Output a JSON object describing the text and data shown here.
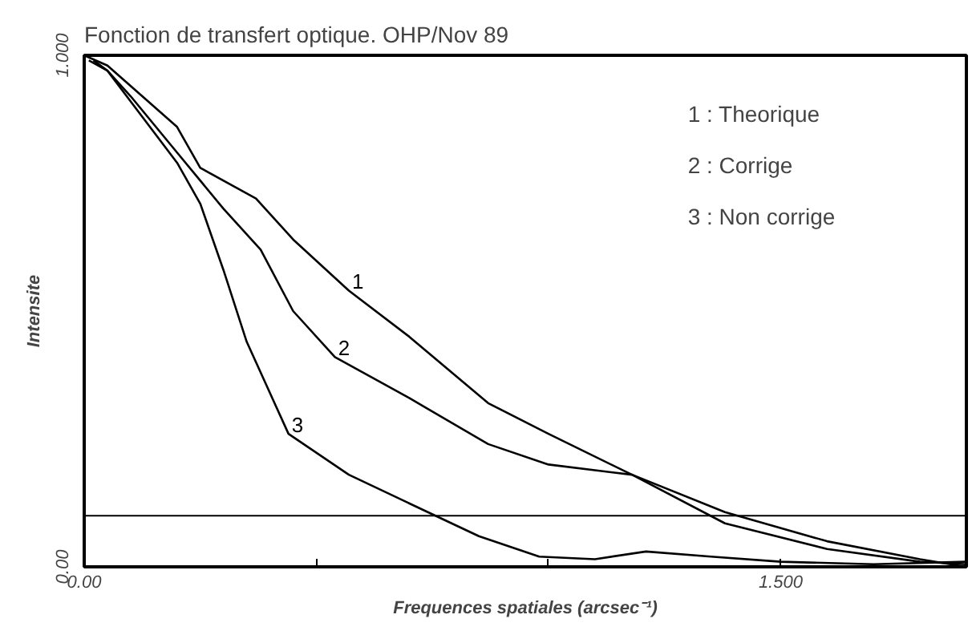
{
  "chart_data": {
    "type": "line",
    "title": "Fonction de transfert optique. OHP/Nov 89",
    "xlabel": "Frequences spatiales (arcsec⁻¹)",
    "ylabel": "Intensite",
    "xlim": [
      0,
      1.9
    ],
    "ylim": [
      0,
      1
    ],
    "xticks": [
      {
        "value": 0,
        "label": "0.00"
      },
      {
        "value": 0.5,
        "label": null
      },
      {
        "value": 1.0,
        "label": null
      },
      {
        "value": 1.5,
        "label": "1.500"
      }
    ],
    "yticks": [
      {
        "value": 0,
        "label": "0.00"
      },
      {
        "value": 1,
        "label": "1.000"
      }
    ],
    "grid": false,
    "marker": "none",
    "line_style": "solid",
    "series": [
      {
        "name": "1",
        "color": "#000000",
        "x": [
          0,
          0.05,
          0.1,
          0.2,
          0.25,
          0.37,
          0.45,
          0.57,
          0.7,
          0.87,
          1.0,
          1.18,
          1.38,
          1.6,
          1.8,
          1.9
        ],
        "values": [
          1.0,
          0.98,
          0.94,
          0.86,
          0.78,
          0.72,
          0.64,
          0.54,
          0.45,
          0.32,
          0.26,
          0.18,
          0.107,
          0.05,
          0.015,
          0.0
        ]
      },
      {
        "name": "2",
        "color": "#000000",
        "x": [
          0.01,
          0.05,
          0.1,
          0.2,
          0.3,
          0.38,
          0.45,
          0.54,
          0.7,
          0.87,
          1.0,
          1.18,
          1.38,
          1.6,
          1.8,
          1.9
        ],
        "values": [
          0.99,
          0.97,
          0.92,
          0.81,
          0.7,
          0.62,
          0.5,
          0.41,
          0.33,
          0.24,
          0.2,
          0.18,
          0.085,
          0.035,
          0.01,
          0.005
        ]
      },
      {
        "name": "3",
        "color": "#000000",
        "x": [
          0.02,
          0.05,
          0.1,
          0.2,
          0.25,
          0.3,
          0.35,
          0.44,
          0.57,
          0.74,
          0.85,
          0.98,
          1.1,
          1.21,
          1.35,
          1.5,
          1.7,
          1.9
        ],
        "values": [
          0.99,
          0.97,
          0.91,
          0.79,
          0.71,
          0.58,
          0.44,
          0.26,
          0.18,
          0.107,
          0.06,
          0.02,
          0.015,
          0.03,
          0.02,
          0.01,
          0.005,
          0.01
        ]
      }
    ],
    "ref_lines": [
      {
        "axis": "y",
        "value": 0.1,
        "label": null,
        "color": "#000000"
      }
    ],
    "annotations": [
      "1 : Theorique",
      "2 : Corrige",
      "3 : Non corrige"
    ]
  }
}
